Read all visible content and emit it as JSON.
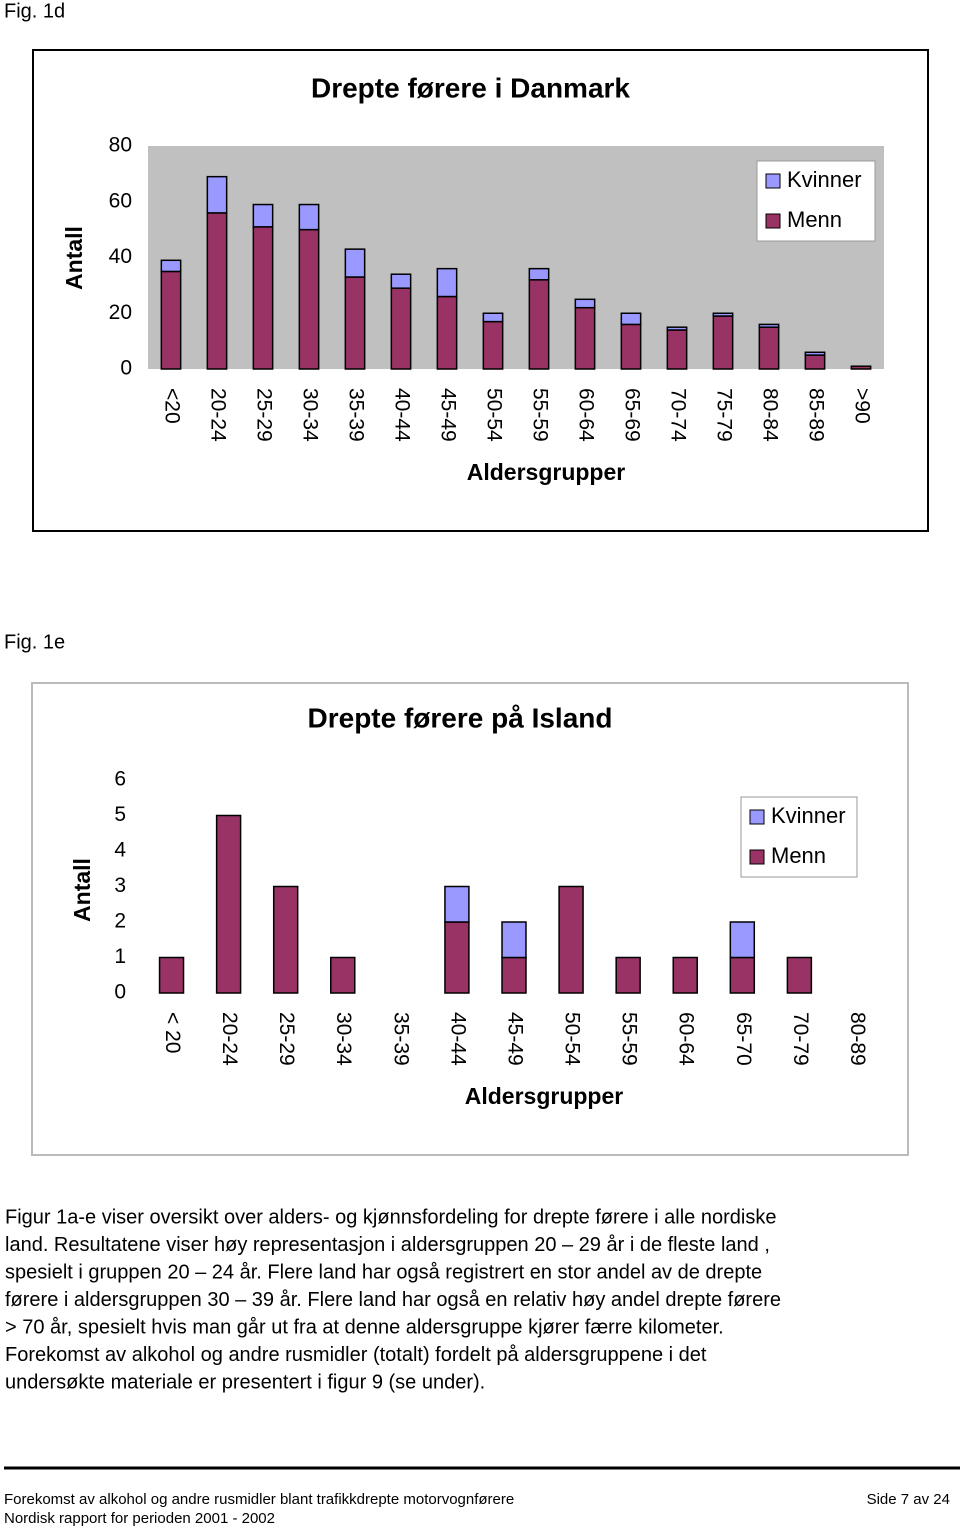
{
  "figure_labels": [
    "Fig. 1d",
    "Fig. 1e"
  ],
  "chart_data": [
    {
      "type": "stacked_bar",
      "title": "Drepte førere i Danmark",
      "y_label": "Antall",
      "x_label": "Aldersgrupper",
      "categories": [
        "<20",
        "20-24",
        "25-29",
        "30-34",
        "35-39",
        "40-44",
        "45-49",
        "50-54",
        "55-59",
        "60-64",
        "65-69",
        "70-74",
        "75-79",
        "80-84",
        "85-89",
        ">90"
      ],
      "series": [
        {
          "name": "Menn",
          "color": "#993366",
          "values": [
            35,
            56,
            51,
            50,
            33,
            29,
            26,
            17,
            32,
            22,
            16,
            14,
            19,
            15,
            5,
            1
          ]
        },
        {
          "name": "Kvinner",
          "color": "#9999ff",
          "values": [
            4,
            13,
            8,
            9,
            10,
            5,
            10,
            3,
            4,
            3,
            4,
            1,
            1,
            1,
            1,
            0
          ]
        }
      ],
      "ylim": [
        0,
        80
      ],
      "yticks": [
        0,
        20,
        40,
        60,
        80
      ],
      "grid": false,
      "legend": "upper right",
      "plot_background": "#c0c0c0"
    },
    {
      "type": "stacked_bar",
      "title": "Drepte førere på Island",
      "y_label": "Antall",
      "x_label": "Aldersgrupper",
      "categories": [
        "< 20",
        "20-24",
        "25-29",
        "30-34",
        "35-39",
        "40-44",
        "45-49",
        "50-54",
        "55-59",
        "60-64",
        "65-70",
        "70-79",
        "80-89"
      ],
      "series": [
        {
          "name": "Menn",
          "color": "#993366",
          "values": [
            1,
            5,
            3,
            1,
            0,
            2,
            1,
            3,
            1,
            1,
            1,
            1,
            0
          ]
        },
        {
          "name": "Kvinner",
          "color": "#9999ff",
          "values": [
            0,
            0,
            0,
            0,
            0,
            1,
            1,
            0,
            0,
            0,
            1,
            0,
            0
          ]
        }
      ],
      "ylim": [
        0,
        6
      ],
      "yticks": [
        0,
        1,
        2,
        3,
        4,
        5,
        6
      ],
      "grid": false,
      "legend": "upper right",
      "plot_background": "#ffffff"
    }
  ],
  "paragraph": [
    "Figur 1a-e  viser oversikt over alders- og kjønnsfordeling for drepte førere i alle nordiske",
    "land. Resultatene viser høy representasjon i aldersgruppen 20 – 29 år i de fleste land ,",
    "spesielt i gruppen 20 – 24 år. Flere land har også registrert en stor andel av de drepte",
    "førere i aldersgruppen 30 – 39  år. Flere land har også en relativ høy andel drepte førere",
    "> 70 år,  spesielt hvis man går ut fra at denne aldersgruppe kjører færre kilometer.",
    "Forekomst av alkohol og andre rusmidler (totalt) fordelt på aldersgruppene i det",
    "undersøkte materiale er presentert i figur 9 (se under)."
  ],
  "footer": {
    "left": [
      "Forekomst av alkohol og andre rusmidler blant trafikkdrepte motorvognførere",
      "Nordisk rapport for perioden 2001 - 2002"
    ],
    "right": "Side 7 av 24"
  }
}
